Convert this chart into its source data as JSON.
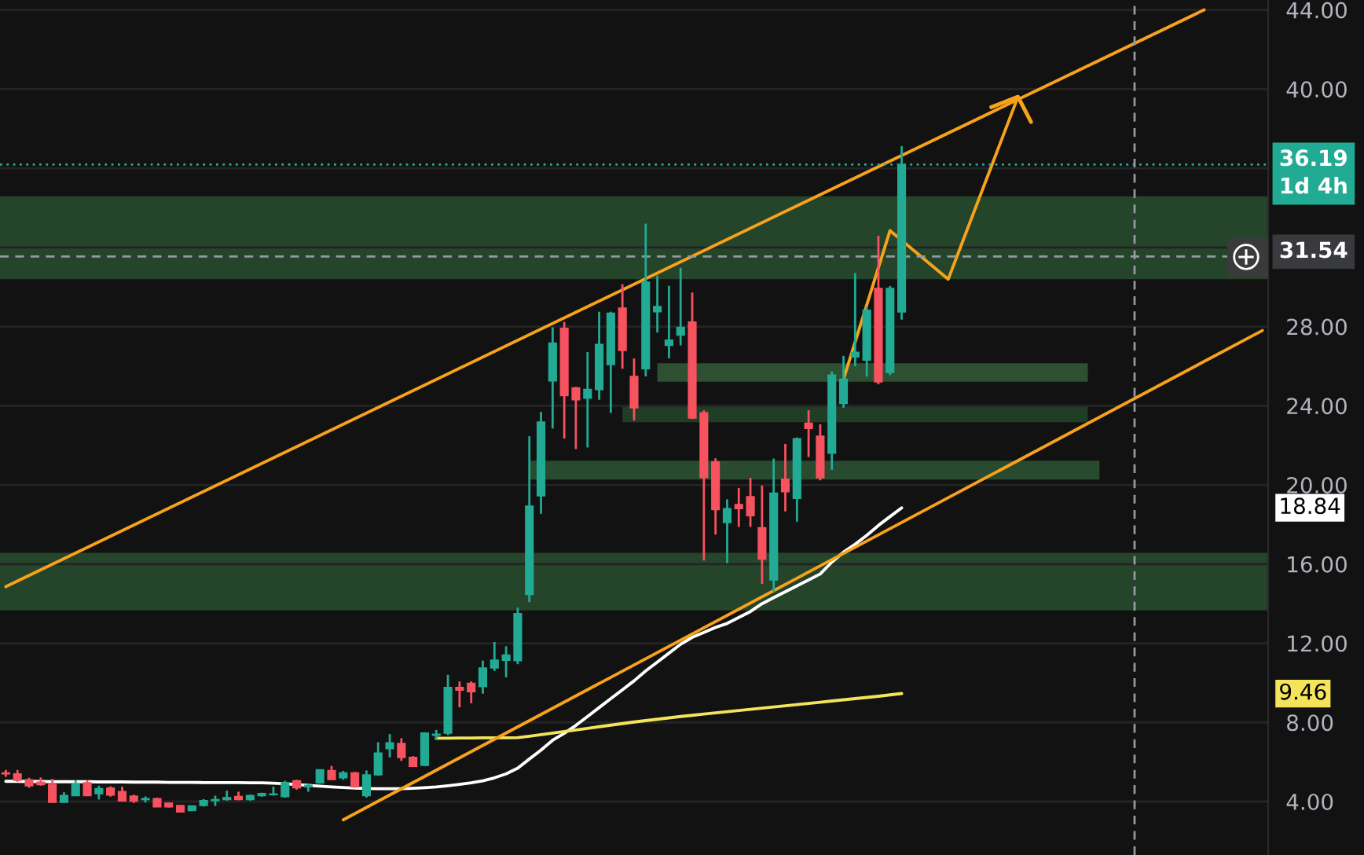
{
  "chart_data": {
    "type": "candlestick",
    "categories": [
      null,
      null,
      null,
      null,
      null,
      null,
      null,
      null,
      null,
      null,
      null,
      null,
      null,
      null,
      null,
      null,
      null,
      null,
      null,
      null,
      null,
      null,
      null,
      null,
      null,
      null,
      null,
      null,
      null,
      null,
      null,
      null,
      null,
      null,
      null,
      null,
      null,
      null,
      null,
      null,
      null,
      null,
      null,
      null,
      null,
      null,
      null,
      null,
      null,
      null,
      null,
      null,
      null,
      null,
      null,
      null,
      null,
      null,
      null,
      null,
      null,
      null,
      null,
      null,
      null,
      null,
      null,
      null,
      null,
      null,
      null,
      null,
      null,
      null,
      null,
      null,
      null,
      null,
      null,
      null,
      null,
      null,
      null,
      null,
      null,
      null,
      null,
      null,
      null,
      null,
      null,
      null,
      null,
      null,
      null,
      null,
      null,
      null,
      null,
      null,
      null,
      null,
      null,
      null,
      null,
      null,
      null,
      null,
      null
    ],
    "ohlc": [
      [
        5.45,
        5.6,
        5.25,
        5.4
      ],
      [
        5.4,
        5.6,
        5.0,
        5.08
      ],
      [
        5.1,
        5.2,
        4.7,
        4.8
      ],
      [
        4.98,
        5.22,
        4.8,
        4.86
      ],
      [
        4.86,
        5.15,
        3.96,
        3.96
      ],
      [
        3.96,
        4.47,
        3.96,
        4.3
      ],
      [
        4.3,
        5.07,
        4.3,
        4.9
      ],
      [
        4.95,
        5.07,
        4.3,
        4.3
      ],
      [
        4.4,
        4.8,
        4.1,
        4.65
      ],
      [
        4.68,
        4.77,
        4.25,
        4.33
      ],
      [
        4.5,
        4.75,
        4.0,
        4.03
      ],
      [
        4.27,
        4.35,
        3.93,
        4.02
      ],
      [
        4.1,
        4.26,
        3.95,
        4.15
      ],
      [
        4.15,
        4.2,
        3.74,
        3.74
      ],
      [
        3.92,
        3.95,
        3.7,
        3.74
      ],
      [
        3.8,
        3.8,
        3.48,
        3.48
      ],
      [
        3.55,
        3.8,
        3.55,
        3.78
      ],
      [
        3.8,
        4.12,
        3.75,
        4.05
      ],
      [
        4.05,
        4.3,
        3.78,
        4.1
      ],
      [
        4.1,
        4.55,
        4.05,
        4.2
      ],
      [
        4.25,
        4.5,
        4.07,
        4.1
      ],
      [
        4.1,
        4.35,
        4.05,
        4.3
      ],
      [
        4.3,
        4.45,
        4.25,
        4.4
      ],
      [
        4.35,
        4.75,
        4.3,
        4.38
      ],
      [
        4.25,
        5.05,
        4.2,
        4.95
      ],
      [
        5.05,
        5.1,
        4.6,
        4.7
      ],
      [
        4.75,
        4.9,
        4.5,
        4.82
      ],
      [
        4.95,
        5.62,
        4.9,
        5.6
      ],
      [
        5.57,
        5.8,
        5.1,
        5.12
      ],
      [
        5.2,
        5.55,
        5.1,
        5.45
      ],
      [
        5.45,
        5.5,
        4.7,
        4.75
      ],
      [
        4.3,
        5.57,
        4.2,
        5.35
      ],
      [
        5.35,
        7.0,
        5.3,
        6.45
      ],
      [
        6.67,
        7.41,
        6.23,
        6.96
      ],
      [
        6.93,
        7.2,
        6.05,
        6.23
      ],
      [
        6.23,
        6.3,
        5.75,
        5.78
      ],
      [
        5.83,
        7.5,
        5.8,
        7.46
      ],
      [
        7.35,
        7.62,
        7.1,
        7.4
      ],
      [
        7.46,
        10.4,
        7.36,
        9.76
      ],
      [
        9.76,
        10.07,
        8.76,
        9.63
      ],
      [
        9.97,
        10.07,
        8.97,
        9.55
      ],
      [
        9.81,
        11.12,
        9.45,
        10.75
      ],
      [
        10.75,
        12.06,
        10.6,
        11.14
      ],
      [
        11.14,
        11.85,
        10.28,
        11.4
      ],
      [
        11.12,
        13.8,
        10.94,
        13.5
      ],
      [
        14.47,
        22.46,
        14.08,
        18.93
      ],
      [
        19.45,
        23.69,
        18.54,
        23.17
      ],
      [
        25.26,
        27.96,
        22.85,
        27.17
      ],
      [
        27.91,
        28.23,
        22.34,
        24.51
      ],
      [
        24.9,
        24.95,
        21.81,
        24.3
      ],
      [
        24.38,
        26.71,
        21.89,
        24.82
      ],
      [
        24.82,
        28.75,
        24.3,
        27.1
      ],
      [
        26.08,
        28.75,
        23.64,
        28.67
      ],
      [
        28.93,
        30.14,
        25.87,
        26.79
      ],
      [
        25.48,
        26.39,
        23.25,
        23.9
      ],
      [
        25.87,
        33.2,
        25.48,
        30.24
      ],
      [
        28.75,
        30.58,
        27.7,
        29.01
      ],
      [
        27.05,
        30.06,
        26.39,
        27.31
      ],
      [
        27.57,
        30.97,
        27.05,
        27.96
      ],
      [
        28.23,
        29.72,
        23.33,
        23.38
      ],
      [
        23.64,
        23.77,
        16.18,
        20.37
      ],
      [
        21.16,
        21.34,
        17.49,
        18.75
      ],
      [
        18.1,
        19.27,
        16.05,
        18.8
      ],
      [
        19.01,
        19.85,
        17.88,
        18.8
      ],
      [
        19.4,
        20.36,
        17.88,
        18.45
      ],
      [
        17.83,
        19.97,
        15.0,
        16.25
      ],
      [
        15.2,
        21.33,
        14.6,
        19.58
      ],
      [
        20.29,
        22.07,
        18.66,
        19.66
      ],
      [
        19.32,
        22.4,
        18.14,
        22.33
      ],
      [
        23.12,
        23.77,
        21.41,
        22.85
      ],
      [
        22.46,
        23.06,
        20.23,
        20.36
      ],
      [
        21.6,
        25.73,
        20.76,
        25.55
      ],
      [
        24.11,
        26.52,
        23.9,
        25.34
      ],
      [
        26.47,
        30.71,
        25.99,
        26.7
      ],
      [
        26.31,
        29.0,
        25.47,
        28.82
      ],
      [
        29.92,
        32.59,
        25.08,
        25.21
      ],
      [
        25.68,
        30.05,
        25.55,
        29.92
      ],
      [
        28.74,
        37.12,
        28.35,
        36.19
      ],
      null,
      null,
      null,
      null,
      null,
      null,
      null,
      null,
      null,
      null,
      null,
      null,
      null,
      null,
      null,
      null,
      null,
      null,
      null,
      null,
      null,
      null,
      null,
      null,
      null,
      null,
      null,
      null,
      null,
      null,
      null
    ],
    "colors": [
      "#f7525f",
      "#f7525f",
      "#f7525f",
      "#f7525f",
      "#f7525f",
      "#22ab94",
      "#22ab94",
      "#f7525f",
      "#22ab94",
      "#f7525f",
      "#f7525f",
      "#f7525f",
      "#22ab94",
      "#f7525f",
      "#f7525f",
      "#f7525f",
      "#22ab94",
      "#22ab94",
      "#22ab94",
      "#22ab94",
      "#f7525f",
      "#22ab94",
      "#22ab94",
      "#22ab94",
      "#22ab94",
      "#f7525f",
      "#22ab94",
      "#22ab94",
      "#f7525f",
      "#22ab94",
      "#f7525f",
      "#22ab94",
      "#22ab94",
      "#22ab94",
      "#f7525f",
      "#f7525f",
      "#22ab94",
      "#22ab94",
      "#22ab94",
      "#f7525f",
      "#f7525f",
      "#22ab94",
      "#22ab94",
      "#22ab94",
      "#22ab94",
      "#22ab94",
      "#22ab94",
      "#22ab94",
      "#f7525f",
      "#f7525f",
      "#22ab94",
      "#22ab94",
      "#22ab94",
      "#f7525f",
      "#f7525f",
      "#22ab94",
      "#22ab94",
      "#22ab94",
      "#22ab94",
      "#f7525f",
      "#f7525f",
      "#f7525f",
      "#22ab94",
      "#f7525f",
      "#f7525f",
      "#f7525f",
      "#22ab94",
      "#f7525f",
      "#22ab94",
      "#f7525f",
      "#f7525f",
      "#22ab94",
      "#22ab94",
      "#22ab94",
      "#22ab94",
      "#f7525f",
      "#22ab94",
      "#22ab94",
      null,
      null,
      null,
      null,
      null,
      null,
      null,
      null,
      null,
      null,
      null,
      null,
      null,
      null,
      null,
      null,
      null,
      null,
      null,
      null,
      null,
      null,
      null,
      null,
      null,
      null,
      null,
      null,
      null,
      null,
      null
    ],
    "series": [
      {
        "type": "line",
        "color": "#2c5031",
        "values": [
          null,
          null,
          null,
          null,
          null,
          null,
          null,
          null,
          null,
          null,
          null,
          null,
          null,
          null,
          null,
          null,
          null,
          null,
          null,
          null,
          null,
          null,
          null,
          null,
          null,
          null,
          null,
          null,
          null,
          null,
          null,
          null,
          null,
          null,
          null,
          null,
          null,
          null,
          null,
          null,
          null,
          null,
          null,
          null,
          null,
          null,
          null,
          null,
          null,
          null,
          null,
          null,
          null,
          null,
          null,
          null,
          null,
          null,
          null,
          null,
          null,
          null,
          null,
          null,
          null,
          null,
          null,
          null,
          null,
          null,
          null,
          null,
          null,
          null,
          null,
          null,
          null,
          null,
          null,
          null,
          null,
          null,
          null,
          null,
          null,
          null,
          null,
          null,
          null,
          null,
          null,
          null,
          null,
          null,
          null,
          null,
          null,
          null,
          null,
          null,
          null,
          null,
          null,
          null,
          null,
          null,
          null,
          null,
          null
        ],
        "upper": [
          null,
          null,
          null,
          null,
          null,
          null,
          null,
          null,
          null,
          null,
          null,
          null,
          null,
          null,
          null,
          null,
          null,
          null,
          null,
          null,
          null,
          null,
          null,
          null,
          null,
          null,
          null,
          null,
          null,
          null,
          null,
          null,
          null,
          null,
          null,
          null,
          null,
          null,
          null,
          null,
          null,
          null,
          null,
          null,
          null,
          null,
          null,
          null,
          null,
          null,
          null,
          null,
          null,
          null,
          null,
          null,
          26.15,
          26.15,
          26.15,
          null,
          26.15,
          26.15,
          26.15,
          26.15,
          26.15,
          26.15,
          26.15,
          26.15,
          26.15,
          26.15,
          26.15,
          null,
          null,
          26.15,
          26.15,
          null,
          null,
          26.15,
          26.15,
          26.15,
          26.15,
          26.15,
          26.15,
          26.15,
          26.15,
          26.15,
          26.15,
          26.15,
          26.15,
          26.15,
          26.15,
          26.15,
          26.15,
          26.15,
          null,
          null,
          null,
          null,
          null,
          null,
          null,
          null,
          null,
          null,
          null,
          null,
          null,
          null,
          null
        ],
        "lower": [
          null,
          null,
          null,
          null,
          null,
          null,
          null,
          null,
          null,
          null,
          null,
          null,
          null,
          null,
          null,
          null,
          null,
          null,
          null,
          null,
          null,
          null,
          null,
          null,
          null,
          null,
          null,
          null,
          null,
          null,
          null,
          null,
          null,
          null,
          null,
          null,
          null,
          null,
          null,
          null,
          null,
          null,
          null,
          null,
          null,
          null,
          null,
          null,
          null,
          null,
          null,
          null,
          null,
          null,
          null,
          null,
          25.21,
          25.21,
          25.21,
          null,
          25.21,
          25.21,
          25.21,
          25.21,
          25.21,
          25.21,
          25.21,
          25.21,
          25.21,
          25.21,
          25.21,
          null,
          null,
          25.21,
          25.21,
          null,
          null,
          25.21,
          25.21,
          25.21,
          25.21,
          25.21,
          25.21,
          25.21,
          25.21,
          25.21,
          25.21,
          25.21,
          25.21,
          25.21,
          25.21,
          25.21,
          25.21,
          25.21,
          null,
          null,
          null,
          null,
          null,
          null,
          null,
          null,
          null,
          null,
          null,
          null,
          null,
          null,
          null
        ]
      },
      {
        "type": "line",
        "color": "#203d26",
        "values": [
          null,
          null,
          null,
          null,
          null,
          null,
          null,
          null,
          null,
          null,
          null,
          null,
          null,
          null,
          null,
          null,
          null,
          null,
          null,
          null,
          null,
          null,
          null,
          null,
          null,
          null,
          null,
          null,
          null,
          null,
          null,
          null,
          null,
          null,
          null,
          null,
          null,
          null,
          null,
          null,
          null,
          null,
          null,
          null,
          null,
          null,
          null,
          null,
          null,
          null,
          null,
          null,
          null,
          null,
          null,
          null,
          null,
          null,
          null,
          null,
          null,
          null,
          null,
          null,
          null,
          null,
          null,
          null,
          null,
          null,
          null,
          null,
          null,
          null,
          null,
          null,
          null,
          null,
          null,
          null,
          null,
          null,
          null,
          null,
          null,
          null,
          null,
          null,
          null,
          null,
          null,
          null,
          null,
          null,
          null,
          null,
          null,
          null,
          null,
          null,
          null,
          null,
          null,
          null,
          null,
          null,
          null,
          null,
          null
        ],
        "upper": [
          null,
          null,
          null,
          null,
          null,
          null,
          null,
          null,
          null,
          null,
          null,
          null,
          null,
          null,
          null,
          null,
          null,
          null,
          null,
          null,
          null,
          null,
          null,
          null,
          null,
          null,
          null,
          null,
          null,
          null,
          null,
          null,
          null,
          null,
          null,
          null,
          null,
          null,
          null,
          null,
          null,
          null,
          null,
          null,
          null,
          null,
          null,
          null,
          null,
          null,
          null,
          null,
          null,
          24.05,
          null,
          24.05,
          24.05,
          24.05,
          24.05,
          null,
          null,
          24.05,
          24.05,
          24.05,
          24.05,
          24.05,
          24.05,
          24.05,
          24.05,
          24.05,
          24.05,
          null,
          24.05,
          24.05,
          24.05,
          24.05,
          24.05,
          24.05,
          24.05,
          24.05,
          24.05,
          24.05,
          24.05,
          24.05,
          24.05,
          24.05,
          24.05,
          24.05,
          24.05,
          24.05,
          24.05,
          24.05,
          24.05,
          24.05,
          null,
          null,
          null,
          null,
          null,
          null,
          null,
          null,
          null,
          null,
          null,
          null,
          null,
          null,
          null
        ],
        "lower": [
          null,
          null,
          null,
          null,
          null,
          null,
          null,
          null,
          null,
          null,
          null,
          null,
          null,
          null,
          null,
          null,
          null,
          null,
          null,
          null,
          null,
          null,
          null,
          null,
          null,
          null,
          null,
          null,
          null,
          null,
          null,
          null,
          null,
          null,
          null,
          null,
          null,
          null,
          null,
          null,
          null,
          null,
          null,
          null,
          null,
          null,
          null,
          null,
          null,
          null,
          null,
          null,
          null,
          23.17,
          null,
          23.17,
          23.17,
          23.17,
          23.17,
          null,
          null,
          23.17,
          23.17,
          23.17,
          23.17,
          23.17,
          23.17,
          23.17,
          23.17,
          23.17,
          23.17,
          null,
          23.17,
          23.17,
          23.17,
          23.17,
          23.17,
          23.17,
          23.17,
          23.17,
          23.17,
          23.17,
          23.17,
          23.17,
          23.17,
          23.17,
          23.17,
          23.17,
          23.17,
          23.17,
          23.17,
          23.17,
          23.17,
          23.17,
          null,
          null,
          null,
          null,
          null,
          null,
          null,
          null,
          null,
          null,
          null,
          null,
          null,
          null,
          null
        ]
      },
      {
        "type": "line",
        "color": "#284a2e",
        "values": [
          null,
          null,
          null,
          null,
          null,
          null,
          null,
          null,
          null,
          null,
          null,
          null,
          null,
          null,
          null,
          null,
          null,
          null,
          null,
          null,
          null,
          null,
          null,
          null,
          null,
          null,
          null,
          null,
          null,
          null,
          null,
          null,
          null,
          null,
          null,
          null,
          null,
          null,
          null,
          null,
          null,
          null,
          null,
          null,
          null,
          null,
          null,
          null,
          null,
          null,
          null,
          null,
          null,
          null,
          null,
          null,
          null,
          null,
          null,
          null,
          null,
          null,
          null,
          null,
          null,
          null,
          null,
          null,
          null,
          null,
          null,
          null,
          null,
          null,
          null,
          null,
          null,
          null,
          null,
          null,
          null,
          null,
          null,
          null,
          null,
          null,
          null,
          null,
          null,
          null,
          null,
          null,
          null,
          null,
          null,
          null,
          null,
          null,
          null,
          null,
          null,
          null,
          null,
          null,
          null,
          null,
          null,
          null,
          null
        ],
        "upper": [
          null,
          null,
          null,
          null,
          null,
          null,
          null,
          null,
          null,
          null,
          null,
          null,
          null,
          null,
          null,
          null,
          null,
          null,
          null,
          null,
          null,
          null,
          null,
          null,
          null,
          null,
          null,
          null,
          null,
          null,
          null,
          null,
          null,
          null,
          null,
          null,
          null,
          null,
          null,
          null,
          null,
          null,
          null,
          null,
          null,
          21.22,
          null,
          21.22,
          21.22,
          21.22,
          21.22,
          21.22,
          21.22,
          21.22,
          21.22,
          21.22,
          21.22,
          21.22,
          21.22,
          21.22,
          null,
          null,
          21.22,
          21.22,
          21.22,
          21.22,
          21.22,
          null,
          null,
          21.22,
          null,
          21.22,
          21.22,
          21.22,
          21.22,
          21.22,
          21.22,
          21.22,
          21.22,
          21.22,
          21.22,
          21.22,
          21.22,
          21.22,
          21.22,
          21.22,
          21.22,
          21.22,
          21.22,
          21.22,
          21.22,
          21.22,
          21.22,
          21.22,
          21.22,
          null,
          null,
          null,
          null,
          null,
          null,
          null,
          null,
          null,
          null,
          null,
          null,
          null,
          null
        ],
        "lower": [
          null,
          null,
          null,
          null,
          null,
          null,
          null,
          null,
          null,
          null,
          null,
          null,
          null,
          null,
          null,
          null,
          null,
          null,
          null,
          null,
          null,
          null,
          null,
          null,
          null,
          null,
          null,
          null,
          null,
          null,
          null,
          null,
          null,
          null,
          null,
          null,
          null,
          null,
          null,
          null,
          null,
          null,
          null,
          null,
          null,
          20.27,
          null,
          20.27,
          20.27,
          20.27,
          20.27,
          20.27,
          20.27,
          20.27,
          20.27,
          20.27,
          20.27,
          20.27,
          20.27,
          20.27,
          null,
          null,
          20.27,
          20.27,
          20.27,
          20.27,
          20.27,
          null,
          null,
          20.27,
          null,
          20.27,
          20.27,
          20.27,
          20.27,
          20.27,
          20.27,
          20.27,
          20.27,
          20.27,
          20.27,
          20.27,
          20.27,
          20.27,
          20.27,
          20.27,
          20.27,
          20.27,
          20.27,
          20.27,
          20.27,
          20.27,
          20.27,
          20.27,
          20.27,
          null,
          null,
          null,
          null,
          null,
          null,
          null,
          null,
          null,
          null,
          null,
          null,
          null,
          null
        ]
      },
      {
        "type": "line",
        "color": "#ffffff",
        "values": [
          5.02,
          5.02,
          5.01,
          5.01,
          5.0,
          5.0,
          5.0,
          5.0,
          4.99,
          4.99,
          4.99,
          4.98,
          4.98,
          4.98,
          4.97,
          4.97,
          4.97,
          4.96,
          4.96,
          4.96,
          4.96,
          4.95,
          4.95,
          4.93,
          4.9,
          4.86,
          4.82,
          4.78,
          4.74,
          4.71,
          4.68,
          4.66,
          4.65,
          4.65,
          4.65,
          4.67,
          4.7,
          4.74,
          4.8,
          4.87,
          4.95,
          5.05,
          5.2,
          5.4,
          5.69,
          6.15,
          6.6,
          7.1,
          7.45,
          7.85,
          8.3,
          8.75,
          9.2,
          9.65,
          10.1,
          10.6,
          11.05,
          11.5,
          11.95,
          12.3,
          12.55,
          12.8,
          13.0,
          13.3,
          13.6,
          14.0,
          14.3,
          14.6,
          14.9,
          15.2,
          15.5,
          16.1,
          16.6,
          17.0,
          17.45,
          17.95,
          18.4,
          18.84,
          null,
          null,
          null,
          null,
          null,
          null,
          null,
          null,
          null,
          null,
          null,
          null,
          null,
          null,
          null,
          null,
          null,
          null,
          null,
          null,
          null,
          null,
          null,
          null,
          null,
          null,
          null,
          null,
          null,
          null,
          null
        ]
      },
      {
        "type": "line",
        "color": "#f3e45c",
        "values": [
          null,
          null,
          null,
          null,
          null,
          null,
          null,
          null,
          null,
          null,
          null,
          null,
          null,
          null,
          null,
          null,
          null,
          null,
          null,
          null,
          null,
          null,
          null,
          null,
          null,
          null,
          null,
          null,
          null,
          null,
          null,
          null,
          null,
          null,
          null,
          null,
          null,
          7.2,
          7.2,
          7.21,
          7.21,
          7.22,
          7.22,
          7.22,
          7.23,
          7.3,
          7.38,
          7.46,
          7.54,
          7.62,
          7.7,
          7.78,
          7.86,
          7.94,
          8.02,
          8.09,
          8.16,
          8.23,
          8.3,
          8.36,
          8.42,
          8.48,
          8.54,
          8.6,
          8.66,
          8.72,
          8.78,
          8.84,
          8.9,
          8.96,
          9.02,
          9.08,
          9.14,
          9.2,
          9.26,
          9.32,
          9.39,
          9.46,
          null,
          null,
          null,
          null,
          null,
          null,
          null,
          null,
          null,
          null,
          null,
          null,
          null,
          null,
          null,
          null,
          null,
          null,
          null,
          null,
          null,
          null,
          null,
          null,
          null,
          null,
          null,
          null,
          null,
          null,
          null
        ]
      },
      {
        "type": "line",
        "color": "#f7a21b",
        "values": [
          14.86,
          null,
          null,
          null,
          null,
          null,
          null,
          null,
          null,
          null,
          null,
          null,
          null,
          null,
          null,
          null,
          null,
          null,
          null,
          null,
          null,
          null,
          null,
          null,
          null,
          null,
          null,
          null,
          null,
          null,
          null,
          null,
          null,
          null,
          null,
          null,
          null,
          null,
          null,
          null,
          null,
          null,
          null,
          null,
          null,
          null,
          null,
          null,
          null,
          null,
          null,
          null,
          null,
          null,
          null,
          null,
          null,
          null,
          null,
          null,
          null,
          null,
          null,
          null,
          null,
          null,
          null,
          null,
          null,
          null,
          null,
          null,
          null,
          null,
          null,
          null,
          null,
          null,
          null,
          null,
          null,
          null,
          null,
          null,
          null,
          null,
          null,
          null,
          null,
          null,
          null,
          null,
          null,
          null,
          null,
          null,
          null,
          null,
          null,
          null,
          null,
          null,
          null,
          44.0,
          null,
          null,
          null,
          null,
          null
        ]
      },
      {
        "type": "line",
        "color": "#f7a21b",
        "values": [
          null,
          null,
          null,
          null,
          null,
          null,
          null,
          null,
          null,
          null,
          null,
          null,
          null,
          null,
          null,
          null,
          null,
          null,
          null,
          null,
          null,
          null,
          null,
          null,
          null,
          null,
          null,
          null,
          null,
          3.08,
          null,
          null,
          null,
          null,
          null,
          null,
          null,
          null,
          null,
          null,
          null,
          null,
          null,
          null,
          null,
          null,
          null,
          null,
          null,
          null,
          null,
          null,
          null,
          null,
          null,
          null,
          null,
          null,
          null,
          null,
          null,
          null,
          null,
          null,
          null,
          null,
          null,
          null,
          null,
          null,
          null,
          null,
          null,
          null,
          null,
          null,
          null,
          null,
          null,
          null,
          null,
          null,
          null,
          null,
          null,
          null,
          null,
          null,
          null,
          null,
          null,
          null,
          null,
          null,
          null,
          null,
          null,
          null,
          null,
          null,
          null,
          null,
          null,
          null,
          null,
          null,
          null,
          null,
          27.8
        ]
      },
      {
        "type": "line",
        "color": "#f7a21b",
        "values": [
          null,
          null,
          null,
          null,
          null,
          null,
          null,
          null,
          null,
          null,
          null,
          null,
          null,
          null,
          null,
          null,
          null,
          null,
          null,
          null,
          null,
          null,
          null,
          null,
          null,
          null,
          null,
          null,
          null,
          null,
          null,
          null,
          null,
          null,
          null,
          null,
          null,
          null,
          null,
          null,
          null,
          null,
          null,
          null,
          null,
          null,
          null,
          null,
          null,
          null,
          null,
          null,
          null,
          null,
          null,
          null,
          null,
          null,
          null,
          null,
          null,
          null,
          null,
          null,
          null,
          null,
          null,
          null,
          null,
          null,
          null,
          null,
          25.34,
          null,
          null,
          null,
          32.85,
          null,
          null,
          null,
          null,
          30.39,
          null,
          null,
          null,
          null,
          null,
          39.61,
          null,
          null,
          null,
          null,
          null,
          null,
          null,
          null,
          null,
          null,
          null,
          null,
          null,
          null,
          null,
          null,
          null,
          null,
          null,
          null,
          null
        ]
      }
    ],
    "bands": [
      {
        "axis": "y",
        "from": 30.39,
        "to": 34.58,
        "color": "#25452b"
      },
      {
        "axis": "y",
        "from": 13.66,
        "to": 16.57,
        "color": "#25452b"
      }
    ],
    "ref_lines": [
      {
        "axis": "y",
        "value": 36.19,
        "label": "36.19\n1d 4h",
        "color": "#22ab94",
        "line_style": "dotted"
      },
      {
        "axis": "y",
        "value": 31.54,
        "label": "31.54",
        "color": "#9598a1",
        "line_style": "dashed"
      }
    ],
    "annotations": [
      "18.84",
      "9.46"
    ],
    "ylim": [
      1.3,
      44.5
    ],
    "yticks": [
      {
        "value": 4,
        "label": "4.00"
      },
      {
        "value": 8,
        "label": "8.00"
      },
      {
        "value": 12,
        "label": "12.00"
      },
      {
        "value": 16,
        "label": "16.00"
      },
      {
        "value": 20,
        "label": "20.00"
      },
      {
        "value": 24,
        "label": "24.00"
      },
      {
        "value": 28,
        "label": "28.00"
      },
      {
        "value": 32,
        "label": null
      },
      {
        "value": 36,
        "label": null
      },
      {
        "value": 40,
        "label": "40.00"
      },
      {
        "value": 44,
        "label": "44.00"
      }
    ],
    "tick_labels": "y",
    "grid": "y"
  }
}
